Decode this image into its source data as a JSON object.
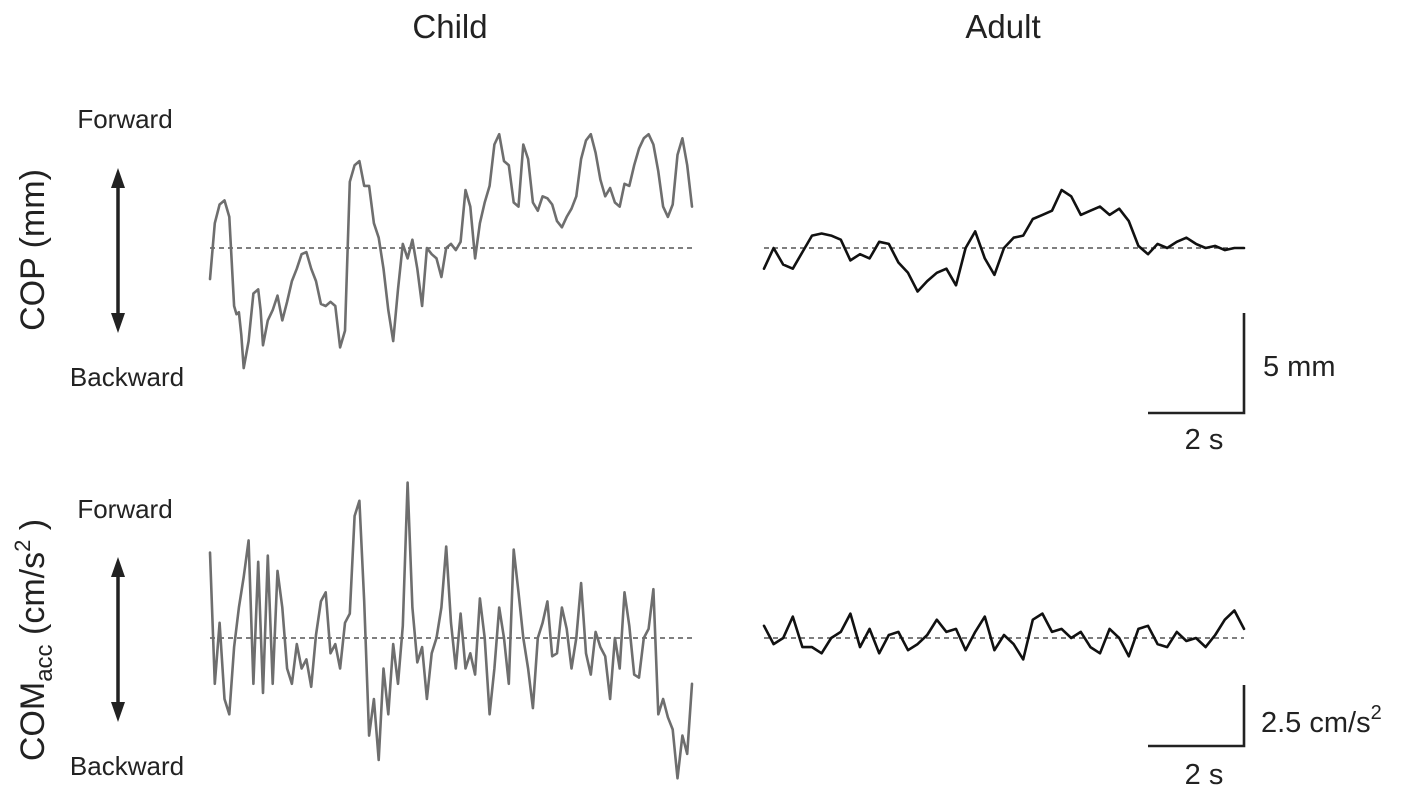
{
  "colors": {
    "child_trace": "#6e6e6e",
    "adult_trace": "#111111",
    "baseline": "#333333",
    "text": "#222222"
  },
  "columns": [
    "Child",
    "Adult"
  ],
  "direction_labels": {
    "forward": "Forward",
    "backward": "Backward"
  },
  "row_labels": {
    "cop": "COP (mm)",
    "com_main": "COM",
    "com_sub": "acc",
    "com_unit_open": " (cm/s",
    "com_unit_sup": "2",
    "com_unit_close": " )"
  },
  "scale_bars": {
    "cop_amplitude": "5 mm",
    "cop_time": "2 s",
    "com_amplitude": "2.5 cm/s",
    "com_amplitude_sup": "2",
    "com_time": "2 s"
  },
  "chart_data": [
    {
      "type": "line",
      "title": "Child",
      "ylabel": "COP (mm)",
      "xlabel": "",
      "xlim": [
        0,
        10
      ],
      "ylim": [
        -8,
        8
      ],
      "grid": false,
      "series": [
        {
          "color": "#6e6e6e",
          "x": [
            0,
            0.1,
            0.2,
            0.3,
            0.4,
            0.5,
            0.55,
            0.6,
            0.65,
            0.7,
            0.8,
            0.9,
            1.0,
            1.05,
            1.1,
            1.2,
            1.3,
            1.4,
            1.5,
            1.6,
            1.7,
            1.8,
            1.9,
            2.0,
            2.1,
            2.2,
            2.3,
            2.4,
            2.5,
            2.6,
            2.7,
            2.8,
            2.9,
            3.0,
            3.1,
            3.2,
            3.3,
            3.4,
            3.5,
            3.6,
            3.7,
            3.8,
            3.9,
            4.0,
            4.1,
            4.2,
            4.3,
            4.4,
            4.5,
            4.6,
            4.7,
            4.8,
            4.9,
            5.0,
            5.1,
            5.2,
            5.3,
            5.4,
            5.5,
            5.6,
            5.7,
            5.8,
            5.9,
            6.0,
            6.1,
            6.2,
            6.3,
            6.4,
            6.5,
            6.6,
            6.7,
            6.8,
            6.9,
            7.0,
            7.1,
            7.2,
            7.3,
            7.4,
            7.5,
            7.6,
            7.7,
            7.8,
            7.9,
            8.0,
            8.1,
            8.2,
            8.3,
            8.4,
            8.5,
            8.6,
            8.7,
            8.8,
            8.9,
            9.0,
            9.1,
            9.2,
            9.3,
            9.4,
            9.5,
            9.6,
            9.7,
            9.8,
            9.9,
            10.0
          ],
          "values": [
            -1.5,
            1.2,
            2.1,
            2.3,
            1.5,
            -2.8,
            -3.2,
            -3.1,
            -4.2,
            -5.8,
            -4.5,
            -2.2,
            -2.0,
            -3.0,
            -4.7,
            -3.5,
            -3.0,
            -2.3,
            -3.5,
            -2.6,
            -1.6,
            -1.0,
            -0.3,
            -0.2,
            -1.0,
            -1.6,
            -2.7,
            -2.8,
            -2.6,
            -2.8,
            -4.8,
            -4.0,
            3.2,
            4.0,
            4.2,
            3.0,
            3.0,
            1.2,
            0.5,
            -1.0,
            -3.0,
            -4.5,
            -2.0,
            0.2,
            -0.5,
            0.4,
            -1.0,
            -2.8,
            0.0,
            -0.3,
            -0.5,
            -1.4,
            0.0,
            0.2,
            -0.1,
            0.3,
            2.8,
            2.0,
            -0.5,
            1.2,
            2.2,
            3.0,
            5.0,
            5.5,
            4.2,
            4.0,
            2.2,
            2.0,
            5.0,
            4.3,
            2.2,
            1.8,
            2.5,
            2.4,
            2.1,
            1.3,
            1.0,
            1.5,
            1.9,
            2.5,
            4.3,
            5.2,
            5.5,
            4.6,
            3.3,
            2.5,
            2.9,
            2.2,
            2.0,
            3.1,
            3.0,
            4.0,
            4.8,
            5.3,
            5.5,
            5.0,
            3.7,
            2.0,
            1.5,
            2.1,
            4.5,
            5.3,
            4.0,
            2.0
          ]
        }
      ]
    },
    {
      "type": "line",
      "title": "Adult",
      "ylabel": "COP (mm)",
      "xlabel": "",
      "xlim": [
        0,
        10
      ],
      "ylim": [
        -8,
        8
      ],
      "grid": false,
      "series": [
        {
          "color": "#111111",
          "x": [
            0,
            0.2,
            0.4,
            0.6,
            0.8,
            1.0,
            1.2,
            1.4,
            1.6,
            1.8,
            2.0,
            2.2,
            2.4,
            2.6,
            2.8,
            3.0,
            3.2,
            3.4,
            3.6,
            3.8,
            4.0,
            4.2,
            4.4,
            4.6,
            4.8,
            5.0,
            5.2,
            5.4,
            5.6,
            5.8,
            6.0,
            6.2,
            6.4,
            6.6,
            6.8,
            7.0,
            7.2,
            7.4,
            7.6,
            7.8,
            8.0,
            8.2,
            8.4,
            8.6,
            8.8,
            9.0,
            9.2,
            9.4,
            9.6,
            9.8,
            10.0
          ],
          "values": [
            -1.0,
            0.0,
            -0.8,
            -1.0,
            -0.2,
            0.6,
            0.7,
            0.6,
            0.4,
            -0.6,
            -0.3,
            -0.5,
            0.3,
            0.2,
            -0.7,
            -1.2,
            -2.1,
            -1.6,
            -1.2,
            -1.0,
            -1.8,
            0.0,
            0.8,
            -0.5,
            -1.3,
            0.0,
            0.5,
            0.6,
            1.4,
            1.6,
            1.8,
            2.8,
            2.5,
            1.6,
            1.8,
            2.0,
            1.6,
            1.9,
            1.3,
            0.1,
            -0.3,
            0.2,
            0.0,
            0.3,
            0.5,
            0.2,
            0.0,
            0.1,
            -0.1,
            0.0,
            0.0
          ]
        }
      ]
    },
    {
      "type": "line",
      "title": "Child",
      "ylabel": "COMacc (cm/s2 )",
      "xlabel": "",
      "xlim": [
        0,
        10
      ],
      "ylim": [
        -6,
        6
      ],
      "grid": false,
      "series": [
        {
          "color": "#6e6e6e",
          "x": [
            0,
            0.1,
            0.2,
            0.3,
            0.4,
            0.5,
            0.6,
            0.7,
            0.8,
            0.9,
            1.0,
            1.1,
            1.2,
            1.3,
            1.4,
            1.5,
            1.6,
            1.7,
            1.8,
            1.9,
            2.0,
            2.1,
            2.2,
            2.3,
            2.4,
            2.5,
            2.6,
            2.7,
            2.8,
            2.9,
            3.0,
            3.1,
            3.2,
            3.3,
            3.4,
            3.5,
            3.6,
            3.7,
            3.8,
            3.9,
            4.0,
            4.1,
            4.2,
            4.3,
            4.4,
            4.5,
            4.6,
            4.7,
            4.8,
            4.9,
            5.0,
            5.1,
            5.2,
            5.3,
            5.4,
            5.5,
            5.6,
            5.7,
            5.8,
            5.9,
            6.0,
            6.1,
            6.2,
            6.3,
            6.4,
            6.5,
            6.6,
            6.7,
            6.8,
            6.9,
            7.0,
            7.1,
            7.2,
            7.3,
            7.4,
            7.5,
            7.6,
            7.7,
            7.8,
            7.9,
            8.0,
            8.1,
            8.2,
            8.3,
            8.4,
            8.5,
            8.6,
            8.7,
            8.8,
            8.9,
            9.0,
            9.1,
            9.2,
            9.3,
            9.4,
            9.5,
            9.6,
            9.7,
            9.8,
            9.9,
            10.0
          ],
          "values": [
            2.8,
            -1.5,
            0.5,
            -2.0,
            -2.5,
            -0.3,
            1.0,
            2.0,
            3.2,
            -1.5,
            2.5,
            -1.8,
            2.7,
            -1.5,
            2.2,
            1.0,
            -1.0,
            -1.5,
            -0.2,
            -1.0,
            -0.7,
            -1.6,
            0.1,
            1.2,
            1.5,
            -0.5,
            -0.2,
            -1.0,
            0.5,
            0.8,
            4.0,
            4.5,
            1.2,
            -3.2,
            -2.0,
            -4.0,
            -1.0,
            -2.5,
            -0.2,
            -1.5,
            0.4,
            5.1,
            1.0,
            -0.8,
            -0.3,
            -2.0,
            -0.5,
            0.0,
            1.0,
            3.0,
            0.5,
            -1.0,
            0.8,
            -1.0,
            -0.5,
            -1.2,
            1.3,
            0.0,
            -2.5,
            -1.0,
            1.0,
            0.0,
            -1.5,
            2.9,
            1.5,
            0.0,
            -1.0,
            -2.3,
            0.0,
            0.5,
            1.2,
            -0.6,
            -0.5,
            1.0,
            0.3,
            -1.0,
            0.0,
            1.8,
            -0.5,
            -1.2,
            0.2,
            -0.3,
            -0.6,
            -2.0,
            0.0,
            -1.0,
            1.5,
            0.4,
            -1.2,
            -1.3,
            0.0,
            0.3,
            1.6,
            -2.5,
            -2.0,
            -2.6,
            -3.0,
            -4.6,
            -3.2,
            -3.8,
            -1.5
          ]
        }
      ]
    },
    {
      "type": "line",
      "title": "Adult",
      "ylabel": "COMacc (cm/s2 )",
      "xlabel": "",
      "xlim": [
        0,
        10
      ],
      "ylim": [
        -6,
        6
      ],
      "grid": false,
      "series": [
        {
          "color": "#111111",
          "x": [
            0,
            0.2,
            0.4,
            0.6,
            0.8,
            1.0,
            1.2,
            1.4,
            1.6,
            1.8,
            2.0,
            2.2,
            2.4,
            2.6,
            2.8,
            3.0,
            3.2,
            3.4,
            3.6,
            3.8,
            4.0,
            4.2,
            4.4,
            4.6,
            4.8,
            5.0,
            5.2,
            5.4,
            5.6,
            5.8,
            6.0,
            6.2,
            6.4,
            6.6,
            6.8,
            7.0,
            7.2,
            7.4,
            7.6,
            7.8,
            8.0,
            8.2,
            8.4,
            8.6,
            8.8,
            9.0,
            9.2,
            9.4,
            9.6,
            9.8,
            10.0
          ],
          "values": [
            0.4,
            -0.2,
            0.0,
            0.7,
            -0.3,
            -0.3,
            -0.5,
            0.0,
            0.2,
            0.8,
            -0.3,
            0.3,
            -0.5,
            0.1,
            0.2,
            -0.4,
            -0.2,
            0.1,
            0.6,
            0.2,
            0.3,
            -0.4,
            0.2,
            0.7,
            -0.4,
            0.1,
            -0.2,
            -0.7,
            0.6,
            0.8,
            0.2,
            0.3,
            0.0,
            0.2,
            -0.3,
            -0.5,
            0.3,
            0.0,
            -0.6,
            0.3,
            0.4,
            -0.2,
            -0.3,
            0.2,
            -0.1,
            0.0,
            -0.3,
            0.1,
            0.6,
            0.9,
            0.3
          ]
        }
      ]
    }
  ]
}
